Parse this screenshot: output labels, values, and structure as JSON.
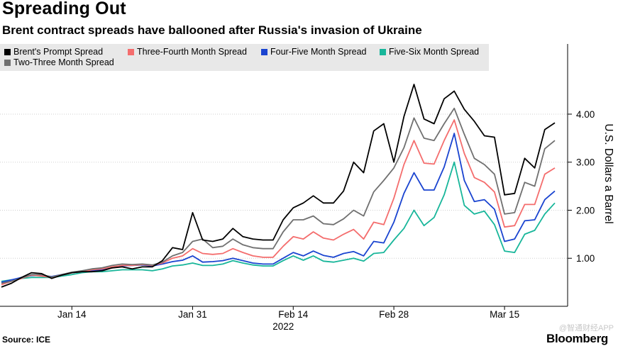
{
  "header": {
    "title": "Spreading Out",
    "subtitle": "Brent contract spreads have ballooned after Russia's invasion of Ukraine"
  },
  "footer": {
    "source": "Source: ICE",
    "brand": "Bloomberg",
    "watermark": "@智通财经APP"
  },
  "chart_data": {
    "type": "line",
    "title": "Spreading Out",
    "subtitle": "Brent contract spreads have ballooned after Russia's invasion of Ukraine",
    "xlabel": "2022",
    "ylabel": "U.S. Dollars a Barrel",
    "ylim": [
      0,
      4.9
    ],
    "y_ticks": [
      1,
      2,
      3,
      4
    ],
    "y_tick_labels": [
      "1.00",
      "2.00",
      "3.00",
      "4.00"
    ],
    "x_tick_labels": [
      "Jan 14",
      "Jan 31",
      "Feb 14",
      "Feb 28",
      "Mar 15"
    ],
    "x_tick_index": [
      7,
      19,
      29,
      39,
      50
    ],
    "x_year_label": "2022",
    "grid": true,
    "legend_position": "top",
    "series": [
      {
        "name": "Brent's Prompt Spread",
        "color": "#000000",
        "values": [
          0.4,
          0.48,
          0.6,
          0.7,
          0.68,
          0.58,
          0.65,
          0.7,
          0.72,
          0.72,
          0.74,
          0.8,
          0.82,
          0.78,
          0.82,
          0.82,
          0.95,
          1.22,
          1.18,
          1.95,
          1.38,
          1.35,
          1.4,
          1.62,
          1.45,
          1.4,
          1.38,
          1.38,
          1.8,
          2.05,
          2.15,
          2.3,
          2.15,
          2.15,
          2.4,
          3.0,
          2.78,
          3.65,
          3.8,
          3.0,
          3.95,
          4.62,
          3.9,
          3.8,
          4.32,
          4.48,
          4.1,
          3.85,
          3.55,
          3.52,
          2.32,
          2.35,
          3.08,
          2.88,
          3.68,
          3.82
        ]
      },
      {
        "name": "Three-Fourth Month Spread",
        "color": "#f46d6d",
        "values": [
          0.45,
          0.52,
          0.58,
          0.65,
          0.63,
          0.6,
          0.65,
          0.7,
          0.72,
          0.76,
          0.78,
          0.82,
          0.85,
          0.85,
          0.87,
          0.85,
          0.9,
          1.0,
          1.05,
          1.2,
          1.1,
          1.08,
          1.1,
          1.2,
          1.12,
          1.05,
          1.02,
          1.02,
          1.25,
          1.45,
          1.4,
          1.55,
          1.42,
          1.38,
          1.5,
          1.6,
          1.4,
          1.75,
          1.7,
          2.25,
          2.95,
          3.45,
          2.98,
          2.96,
          3.45,
          3.88,
          3.18,
          2.68,
          2.58,
          2.38,
          1.65,
          1.68,
          2.12,
          2.12,
          2.75,
          2.88
        ]
      },
      {
        "name": "Four-Five Month Spread",
        "color": "#1a44d0",
        "values": [
          0.5,
          0.55,
          0.6,
          0.64,
          0.64,
          0.62,
          0.66,
          0.7,
          0.72,
          0.74,
          0.76,
          0.8,
          0.84,
          0.85,
          0.86,
          0.84,
          0.88,
          0.93,
          0.96,
          1.05,
          0.92,
          0.93,
          0.95,
          1.0,
          0.95,
          0.9,
          0.88,
          0.88,
          1.0,
          1.12,
          1.05,
          1.15,
          1.06,
          1.02,
          1.1,
          1.14,
          1.05,
          1.35,
          1.32,
          1.75,
          2.35,
          2.78,
          2.42,
          2.42,
          2.9,
          3.6,
          2.62,
          2.18,
          2.22,
          2.02,
          1.35,
          1.4,
          1.78,
          1.8,
          2.22,
          2.4
        ]
      },
      {
        "name": "Five-Six Month Spread",
        "color": "#18b69a",
        "values": [
          0.52,
          0.55,
          0.58,
          0.6,
          0.6,
          0.6,
          0.63,
          0.66,
          0.7,
          0.72,
          0.72,
          0.74,
          0.76,
          0.76,
          0.76,
          0.74,
          0.78,
          0.84,
          0.86,
          0.9,
          0.85,
          0.85,
          0.88,
          0.95,
          0.9,
          0.86,
          0.84,
          0.84,
          0.95,
          1.05,
          0.96,
          1.05,
          0.94,
          0.92,
          0.96,
          1.0,
          0.94,
          1.1,
          1.12,
          1.38,
          1.62,
          2.0,
          1.68,
          1.85,
          2.32,
          3.0,
          2.1,
          1.92,
          1.98,
          1.7,
          1.15,
          1.12,
          1.5,
          1.58,
          1.92,
          2.15
        ]
      },
      {
        "name": "Two-Three Month Spread",
        "color": "#707070",
        "values": [
          0.48,
          0.52,
          0.59,
          0.66,
          0.66,
          0.61,
          0.66,
          0.71,
          0.74,
          0.78,
          0.8,
          0.85,
          0.88,
          0.87,
          0.88,
          0.86,
          0.92,
          1.05,
          1.12,
          1.35,
          1.4,
          1.22,
          1.25,
          1.4,
          1.28,
          1.22,
          1.2,
          1.2,
          1.55,
          1.8,
          1.8,
          1.88,
          1.72,
          1.7,
          1.82,
          2.0,
          1.88,
          2.38,
          2.62,
          2.88,
          3.3,
          3.92,
          3.5,
          3.45,
          3.8,
          4.12,
          3.58,
          3.08,
          2.95,
          2.75,
          1.92,
          1.95,
          2.58,
          2.5,
          3.28,
          3.45
        ]
      }
    ]
  }
}
